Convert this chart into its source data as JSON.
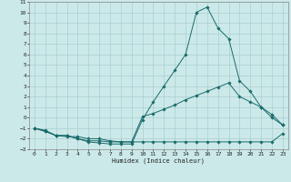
{
  "xlabel": "Humidex (Indice chaleur)",
  "background_color": "#cce9e9",
  "grid_color": "#aacfcf",
  "line_color": "#1a6b6b",
  "xlim": [
    -0.5,
    23.5
  ],
  "ylim": [
    -3,
    11
  ],
  "xticks": [
    0,
    1,
    2,
    3,
    4,
    5,
    6,
    7,
    8,
    9,
    10,
    11,
    12,
    13,
    14,
    15,
    16,
    17,
    18,
    19,
    20,
    21,
    22,
    23
  ],
  "yticks": [
    -3,
    -2,
    -1,
    0,
    1,
    2,
    3,
    4,
    5,
    6,
    7,
    8,
    9,
    10,
    11
  ],
  "series": [
    {
      "x": [
        0,
        1,
        2,
        3,
        4,
        5,
        6,
        7,
        8,
        9,
        10,
        11,
        12,
        13,
        14,
        15,
        16,
        17,
        18,
        19,
        20,
        21,
        22,
        23
      ],
      "y": [
        -1,
        -1.3,
        -1.7,
        -1.7,
        -2,
        -2.2,
        -2.2,
        -2.3,
        -2.3,
        -2.3,
        -2.3,
        -2.3,
        -2.3,
        -2.3,
        -2.3,
        -2.3,
        -2.3,
        -2.3,
        -2.3,
        -2.3,
        -2.3,
        -2.3,
        -2.3,
        -1.5
      ]
    },
    {
      "x": [
        0,
        1,
        2,
        3,
        4,
        5,
        6,
        7,
        8,
        9,
        10,
        11,
        12,
        13,
        14,
        15,
        16,
        17,
        18,
        19,
        20,
        21,
        22,
        23
      ],
      "y": [
        -1,
        -1.3,
        -1.7,
        -1.8,
        -1.8,
        -2.0,
        -2.0,
        -2.2,
        -2.3,
        -2.3,
        0.1,
        0.4,
        0.8,
        1.2,
        1.7,
        2.1,
        2.5,
        2.9,
        3.3,
        2.0,
        1.5,
        1.0,
        0.3,
        -0.7
      ]
    },
    {
      "x": [
        0,
        1,
        2,
        3,
        4,
        5,
        6,
        7,
        8,
        9,
        10,
        11,
        12,
        13,
        14,
        15,
        16,
        17,
        18,
        19,
        20,
        21,
        22,
        23
      ],
      "y": [
        -1,
        -1.2,
        -1.7,
        -1.7,
        -2.0,
        -2.3,
        -2.4,
        -2.5,
        -2.5,
        -2.5,
        -0.2,
        1.5,
        3.0,
        4.5,
        6.0,
        10.0,
        10.5,
        8.5,
        7.5,
        3.5,
        2.5,
        1.0,
        0.0,
        -0.7
      ]
    }
  ]
}
